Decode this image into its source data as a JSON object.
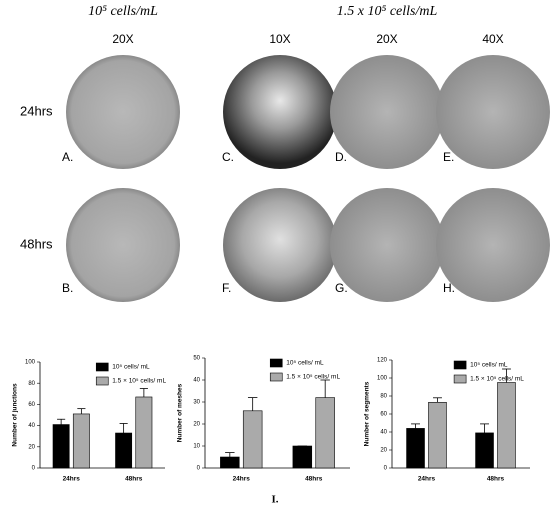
{
  "figure": {
    "header_left": "10⁵ cells/mL",
    "header_right": "1.5 x 10⁵ cells/mL",
    "magnifications": [
      "20X",
      "10X",
      "20X",
      "40X"
    ],
    "rows": [
      "24hrs",
      "48hrs"
    ],
    "panels": [
      "A.",
      "B.",
      "C.",
      "D.",
      "E.",
      "F.",
      "G.",
      "H."
    ],
    "caption": "I."
  },
  "chart_data": [
    {
      "type": "bar",
      "y_label": "Number of junctions",
      "categories": [
        "24hrs",
        "48hrs"
      ],
      "series": [
        {
          "name": "10⁵ cells/ mL",
          "color": "#000000",
          "values": [
            41,
            33
          ],
          "errors": [
            5,
            9
          ]
        },
        {
          "name": "1.5 × 10⁵ cells/ mL",
          "color": "#aaaaaa",
          "values": [
            51,
            67
          ],
          "errors": [
            5,
            8
          ]
        }
      ],
      "ylim": [
        0,
        100
      ],
      "yticks": [
        0,
        20,
        40,
        60,
        80,
        100
      ]
    },
    {
      "type": "bar",
      "y_label": "Number of meshes",
      "categories": [
        "24hrs",
        "48hrs"
      ],
      "series": [
        {
          "name": "10⁵ cells/ mL",
          "color": "#000000",
          "values": [
            5,
            10
          ],
          "errors": [
            2,
            0
          ]
        },
        {
          "name": "1.5 × 10⁵ cells/ mL",
          "color": "#aaaaaa",
          "values": [
            26,
            32
          ],
          "errors": [
            6,
            8
          ]
        }
      ],
      "ylim": [
        0,
        50
      ],
      "yticks": [
        0,
        10,
        20,
        30,
        40,
        50
      ]
    },
    {
      "type": "bar",
      "y_label": "Number of segments",
      "categories": [
        "24hrs",
        "48hrs"
      ],
      "series": [
        {
          "name": "10⁵ cells/ mL",
          "color": "#000000",
          "values": [
            44,
            39
          ],
          "errors": [
            5,
            10
          ]
        },
        {
          "name": "1.5 × 10⁵ cells/ mL",
          "color": "#aaaaaa",
          "values": [
            73,
            95
          ],
          "errors": [
            5,
            15
          ]
        }
      ],
      "ylim": [
        0,
        120
      ],
      "yticks": [
        0,
        20,
        40,
        60,
        80,
        100,
        120
      ]
    }
  ]
}
